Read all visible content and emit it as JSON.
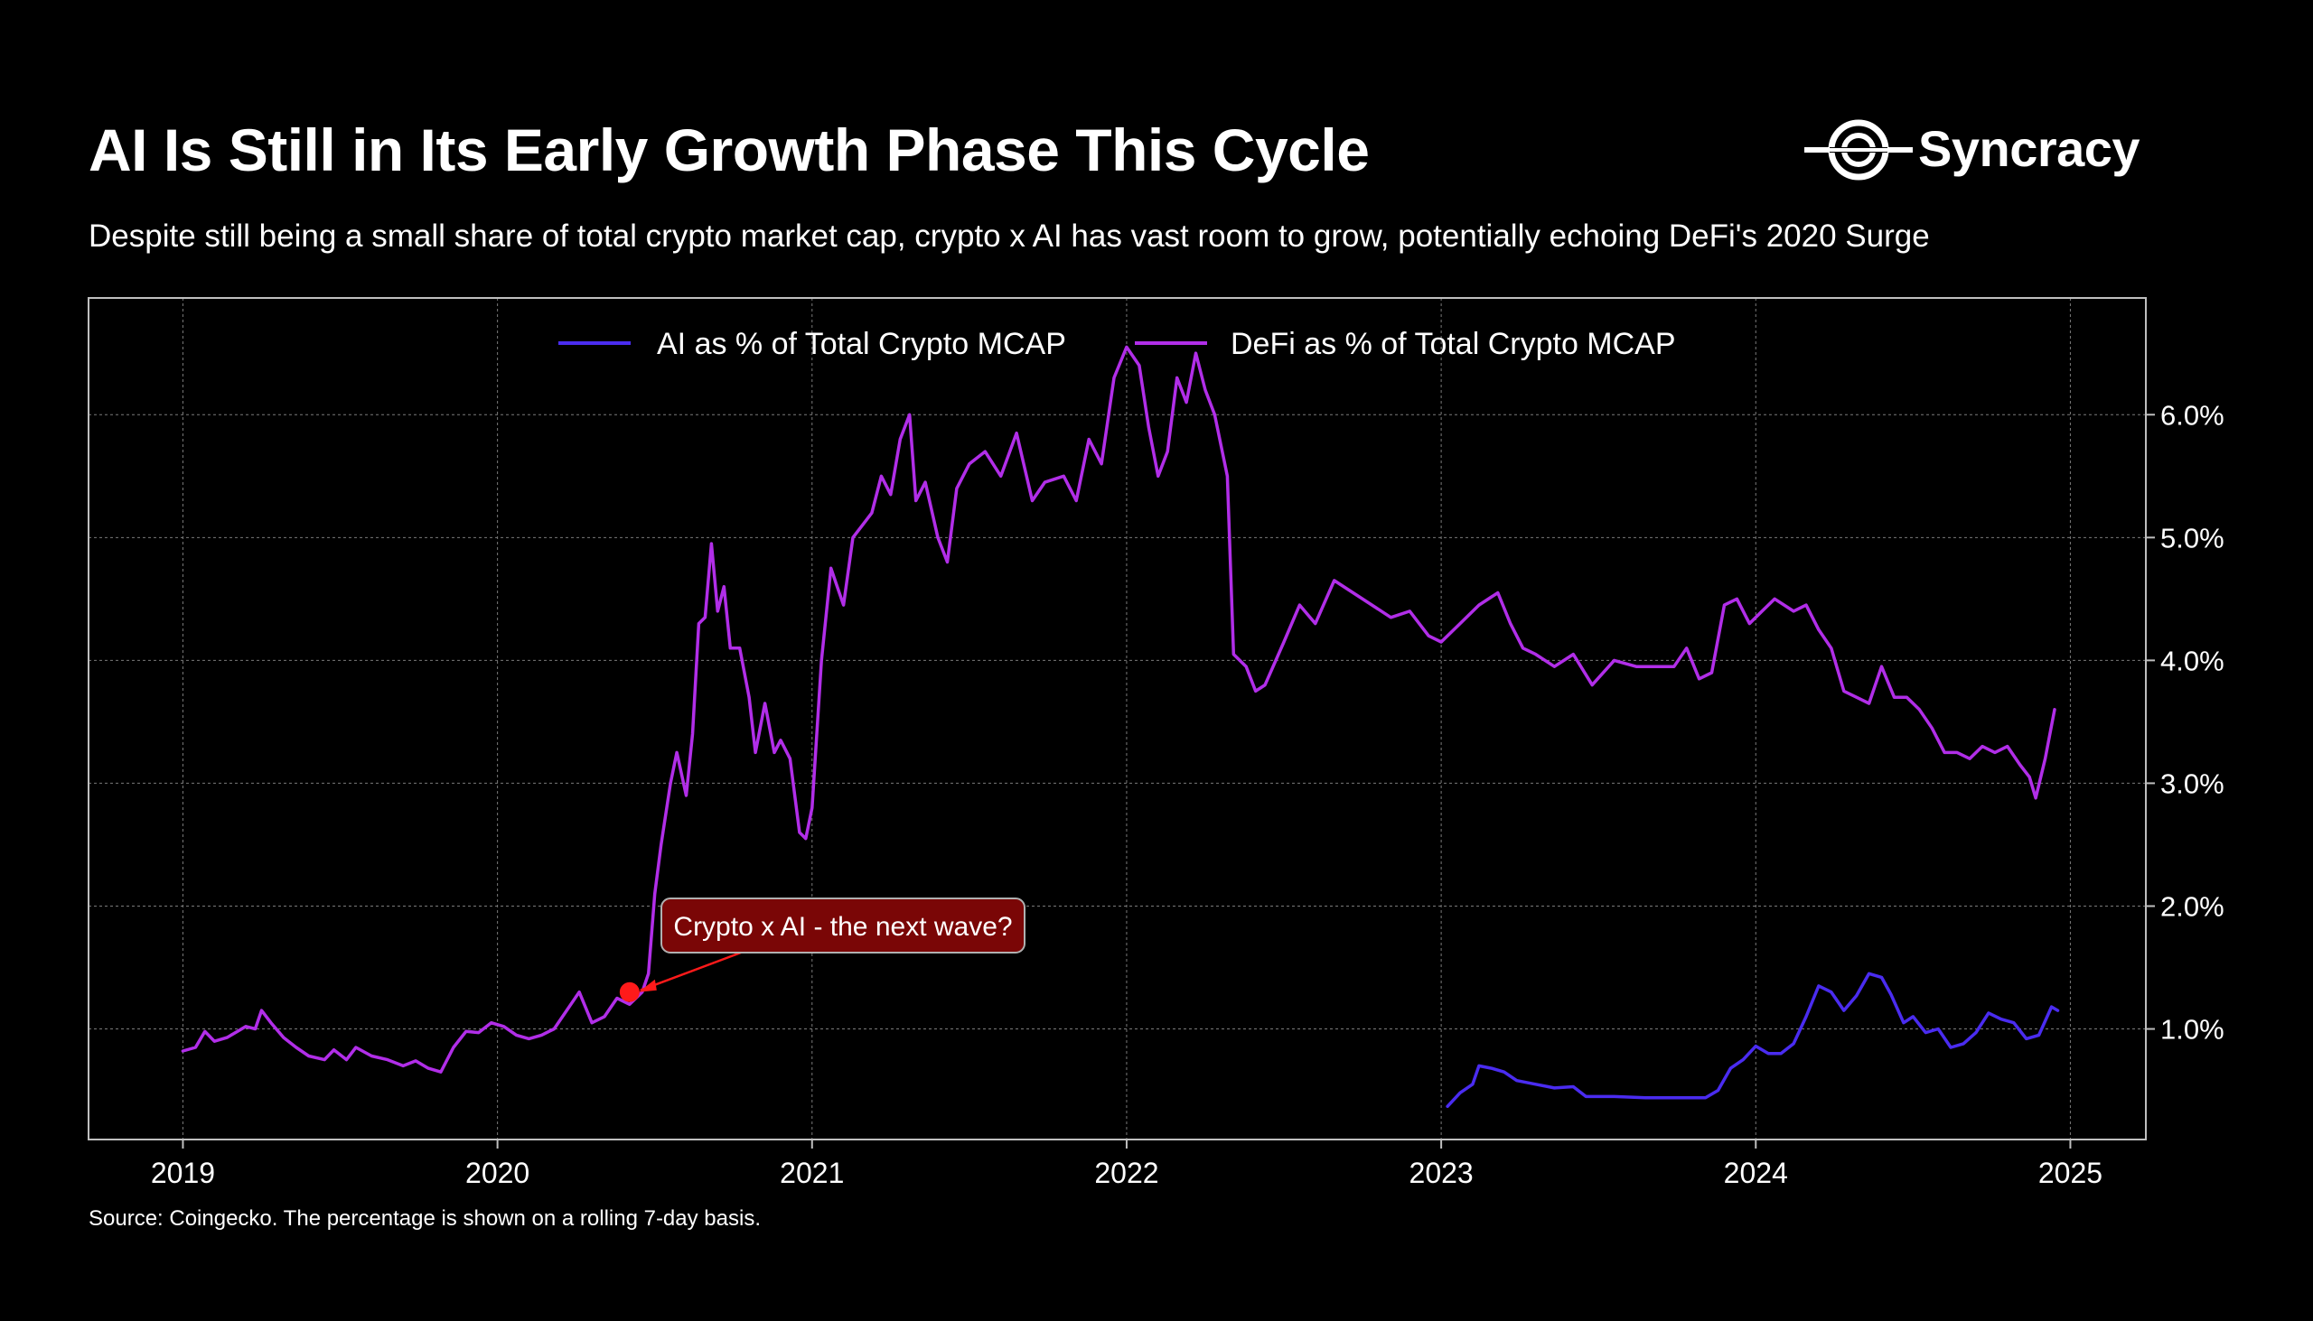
{
  "header": {
    "title": "AI Is Still in Its Early Growth Phase This Cycle",
    "subtitle": "Despite still being a small share of total crypto market cap, crypto x AI has vast room to grow, potentially echoing DeFi's 2020 Surge",
    "brand": "Syncracy"
  },
  "footer": {
    "source": "Source: Coingecko. The percentage is shown on a rolling 7-day basis."
  },
  "colors": {
    "background": "#000000",
    "ai_series": "#4a2cf0",
    "defi_series": "#b12ee8",
    "annotation_fill": "#7a0606",
    "annotation_marker": "#ff1a1a"
  },
  "chart_data": {
    "type": "line",
    "title": "",
    "xlabel": "",
    "ylabel": "",
    "xlim": [
      2018.7,
      2025.24
    ],
    "ylim": [
      0.1,
      6.95
    ],
    "x_ticks": [
      2019,
      2020,
      2021,
      2022,
      2023,
      2024,
      2025
    ],
    "x_tick_labels": [
      "2019",
      "2020",
      "2021",
      "2022",
      "2023",
      "2024",
      "2025"
    ],
    "y_ticks": [
      1,
      2,
      3,
      4,
      5,
      6
    ],
    "y_tick_labels": [
      "1.0%",
      "2.0%",
      "3.0%",
      "4.0%",
      "5.0%",
      "6.0%"
    ],
    "y_axis_side": "right",
    "grid": true,
    "legend_position": "top-center",
    "series": [
      {
        "name": "AI as % of Total Crypto MCAP",
        "color": "#4a2cf0",
        "points": [
          [
            2023.02,
            0.37
          ],
          [
            2023.06,
            0.48
          ],
          [
            2023.1,
            0.55
          ],
          [
            2023.12,
            0.7
          ],
          [
            2023.16,
            0.68
          ],
          [
            2023.2,
            0.65
          ],
          [
            2023.24,
            0.58
          ],
          [
            2023.3,
            0.55
          ],
          [
            2023.36,
            0.52
          ],
          [
            2023.42,
            0.53
          ],
          [
            2023.46,
            0.45
          ],
          [
            2023.55,
            0.45
          ],
          [
            2023.65,
            0.44
          ],
          [
            2023.75,
            0.44
          ],
          [
            2023.84,
            0.44
          ],
          [
            2023.88,
            0.5
          ],
          [
            2023.92,
            0.68
          ],
          [
            2023.96,
            0.75
          ],
          [
            2024.0,
            0.86
          ],
          [
            2024.04,
            0.8
          ],
          [
            2024.08,
            0.8
          ],
          [
            2024.12,
            0.88
          ],
          [
            2024.16,
            1.1
          ],
          [
            2024.2,
            1.35
          ],
          [
            2024.24,
            1.3
          ],
          [
            2024.28,
            1.15
          ],
          [
            2024.32,
            1.27
          ],
          [
            2024.36,
            1.45
          ],
          [
            2024.4,
            1.42
          ],
          [
            2024.43,
            1.28
          ],
          [
            2024.47,
            1.05
          ],
          [
            2024.5,
            1.1
          ],
          [
            2024.54,
            0.97
          ],
          [
            2024.58,
            1.0
          ],
          [
            2024.62,
            0.85
          ],
          [
            2024.66,
            0.88
          ],
          [
            2024.7,
            0.97
          ],
          [
            2024.74,
            1.13
          ],
          [
            2024.78,
            1.08
          ],
          [
            2024.82,
            1.05
          ],
          [
            2024.86,
            0.92
          ],
          [
            2024.9,
            0.95
          ],
          [
            2024.94,
            1.18
          ],
          [
            2024.96,
            1.15
          ]
        ]
      },
      {
        "name": "DeFi as % of Total Crypto MCAP",
        "color": "#b12ee8",
        "points": [
          [
            2019.0,
            0.82
          ],
          [
            2019.04,
            0.85
          ],
          [
            2019.07,
            0.98
          ],
          [
            2019.1,
            0.9
          ],
          [
            2019.14,
            0.93
          ],
          [
            2019.2,
            1.02
          ],
          [
            2019.23,
            1.0
          ],
          [
            2019.25,
            1.15
          ],
          [
            2019.28,
            1.05
          ],
          [
            2019.32,
            0.93
          ],
          [
            2019.36,
            0.85
          ],
          [
            2019.4,
            0.78
          ],
          [
            2019.45,
            0.75
          ],
          [
            2019.48,
            0.83
          ],
          [
            2019.52,
            0.75
          ],
          [
            2019.55,
            0.85
          ],
          [
            2019.6,
            0.78
          ],
          [
            2019.65,
            0.75
          ],
          [
            2019.7,
            0.7
          ],
          [
            2019.74,
            0.74
          ],
          [
            2019.78,
            0.68
          ],
          [
            2019.82,
            0.65
          ],
          [
            2019.86,
            0.85
          ],
          [
            2019.9,
            0.98
          ],
          [
            2019.94,
            0.97
          ],
          [
            2019.98,
            1.05
          ],
          [
            2020.02,
            1.02
          ],
          [
            2020.06,
            0.95
          ],
          [
            2020.1,
            0.92
          ],
          [
            2020.14,
            0.95
          ],
          [
            2020.18,
            1.0
          ],
          [
            2020.22,
            1.15
          ],
          [
            2020.26,
            1.3
          ],
          [
            2020.3,
            1.05
          ],
          [
            2020.34,
            1.1
          ],
          [
            2020.38,
            1.25
          ],
          [
            2020.42,
            1.2
          ],
          [
            2020.46,
            1.3
          ],
          [
            2020.48,
            1.45
          ],
          [
            2020.5,
            2.1
          ],
          [
            2020.52,
            2.5
          ],
          [
            2020.55,
            3.0
          ],
          [
            2020.57,
            3.25
          ],
          [
            2020.6,
            2.9
          ],
          [
            2020.62,
            3.4
          ],
          [
            2020.64,
            4.3
          ],
          [
            2020.66,
            4.35
          ],
          [
            2020.68,
            4.95
          ],
          [
            2020.7,
            4.4
          ],
          [
            2020.72,
            4.6
          ],
          [
            2020.74,
            4.1
          ],
          [
            2020.77,
            4.1
          ],
          [
            2020.8,
            3.7
          ],
          [
            2020.82,
            3.25
          ],
          [
            2020.85,
            3.65
          ],
          [
            2020.88,
            3.25
          ],
          [
            2020.9,
            3.35
          ],
          [
            2020.93,
            3.2
          ],
          [
            2020.96,
            2.6
          ],
          [
            2020.98,
            2.55
          ],
          [
            2021.0,
            2.8
          ],
          [
            2021.03,
            4.0
          ],
          [
            2021.06,
            4.75
          ],
          [
            2021.08,
            4.6
          ],
          [
            2021.1,
            4.45
          ],
          [
            2021.13,
            5.0
          ],
          [
            2021.16,
            5.1
          ],
          [
            2021.19,
            5.2
          ],
          [
            2021.22,
            5.5
          ],
          [
            2021.25,
            5.35
          ],
          [
            2021.28,
            5.8
          ],
          [
            2021.31,
            6.0
          ],
          [
            2021.33,
            5.3
          ],
          [
            2021.36,
            5.45
          ],
          [
            2021.4,
            5.0
          ],
          [
            2021.43,
            4.8
          ],
          [
            2021.46,
            5.4
          ],
          [
            2021.5,
            5.6
          ],
          [
            2021.55,
            5.7
          ],
          [
            2021.6,
            5.5
          ],
          [
            2021.65,
            5.85
          ],
          [
            2021.7,
            5.3
          ],
          [
            2021.74,
            5.45
          ],
          [
            2021.8,
            5.5
          ],
          [
            2021.84,
            5.3
          ],
          [
            2021.88,
            5.8
          ],
          [
            2021.92,
            5.6
          ],
          [
            2021.96,
            6.3
          ],
          [
            2022.0,
            6.55
          ],
          [
            2022.04,
            6.4
          ],
          [
            2022.07,
            5.9
          ],
          [
            2022.1,
            5.5
          ],
          [
            2022.13,
            5.7
          ],
          [
            2022.16,
            6.3
          ],
          [
            2022.19,
            6.1
          ],
          [
            2022.22,
            6.5
          ],
          [
            2022.25,
            6.2
          ],
          [
            2022.28,
            6.0
          ],
          [
            2022.32,
            5.5
          ],
          [
            2022.34,
            4.05
          ],
          [
            2022.38,
            3.95
          ],
          [
            2022.41,
            3.75
          ],
          [
            2022.44,
            3.8
          ],
          [
            2022.5,
            4.15
          ],
          [
            2022.55,
            4.45
          ],
          [
            2022.6,
            4.3
          ],
          [
            2022.66,
            4.65
          ],
          [
            2022.72,
            4.55
          ],
          [
            2022.78,
            4.45
          ],
          [
            2022.84,
            4.35
          ],
          [
            2022.9,
            4.4
          ],
          [
            2022.96,
            4.2
          ],
          [
            2023.0,
            4.15
          ],
          [
            2023.06,
            4.3
          ],
          [
            2023.12,
            4.45
          ],
          [
            2023.18,
            4.55
          ],
          [
            2023.22,
            4.3
          ],
          [
            2023.26,
            4.1
          ],
          [
            2023.3,
            4.05
          ],
          [
            2023.36,
            3.95
          ],
          [
            2023.42,
            4.05
          ],
          [
            2023.48,
            3.8
          ],
          [
            2023.55,
            4.0
          ],
          [
            2023.62,
            3.95
          ],
          [
            2023.68,
            3.95
          ],
          [
            2023.74,
            3.95
          ],
          [
            2023.78,
            4.1
          ],
          [
            2023.82,
            3.85
          ],
          [
            2023.86,
            3.9
          ],
          [
            2023.9,
            4.45
          ],
          [
            2023.94,
            4.5
          ],
          [
            2023.98,
            4.3
          ],
          [
            2024.02,
            4.4
          ],
          [
            2024.06,
            4.5
          ],
          [
            2024.12,
            4.4
          ],
          [
            2024.16,
            4.45
          ],
          [
            2024.2,
            4.25
          ],
          [
            2024.24,
            4.1
          ],
          [
            2024.28,
            3.75
          ],
          [
            2024.32,
            3.7
          ],
          [
            2024.36,
            3.65
          ],
          [
            2024.4,
            3.95
          ],
          [
            2024.44,
            3.7
          ],
          [
            2024.48,
            3.7
          ],
          [
            2024.52,
            3.6
          ],
          [
            2024.56,
            3.45
          ],
          [
            2024.6,
            3.25
          ],
          [
            2024.64,
            3.25
          ],
          [
            2024.68,
            3.2
          ],
          [
            2024.72,
            3.3
          ],
          [
            2024.76,
            3.25
          ],
          [
            2024.8,
            3.3
          ],
          [
            2024.84,
            3.15
          ],
          [
            2024.87,
            3.05
          ],
          [
            2024.89,
            2.88
          ],
          [
            2024.92,
            3.2
          ],
          [
            2024.95,
            3.6
          ]
        ]
      }
    ],
    "annotations": [
      {
        "text": "Crypto x AI - the next wave?",
        "point": [
          2020.42,
          1.3
        ]
      }
    ]
  }
}
